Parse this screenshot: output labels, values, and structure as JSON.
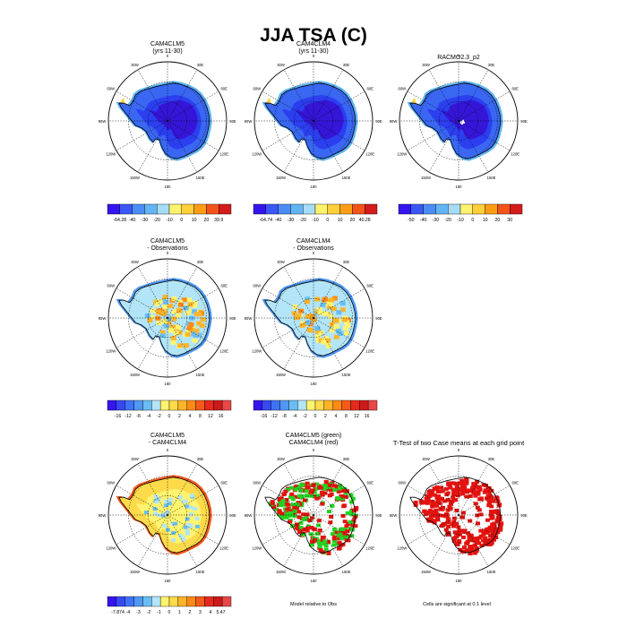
{
  "title": "JJA TSA (C)",
  "colors": {
    "land_base": "#2b3ff0",
    "land_deep": "#3516d8",
    "land_coast": "#5fb4f3",
    "ice_shelf": "#b3e6ff",
    "sig_red": "#e3130f",
    "sig_green": "#22d321"
  },
  "panels": [
    {
      "id": "cam4clm5",
      "title_lines": [
        "CAM4CLM5",
        "(yrs 11-30)"
      ],
      "fill": "absolute"
    },
    {
      "id": "cam4clm4",
      "title_lines": [
        "CAM4CLM4",
        "(yrs 11-30)"
      ],
      "fill": "absolute"
    },
    {
      "id": "racmo",
      "title_lines": [
        "RACMO2.3_p2"
      ],
      "fill": "absolute_obs"
    },
    {
      "id": "clm5-obs",
      "title_lines": [
        "CAM4CLM5",
        "- Observations"
      ],
      "fill": "bias"
    },
    {
      "id": "clm4-obs",
      "title_lines": [
        "CAM4CLM4",
        "- Observations"
      ],
      "fill": "bias"
    },
    {
      "id": "clm5-clm4",
      "title_lines": [
        "CAM4CLM5",
        "- CAM4CLM4"
      ],
      "fill": "diff"
    },
    {
      "id": "sig-compare",
      "title_lines": [
        "CAM4CLM5 (green)",
        "CAM4CLM4 (red)"
      ],
      "fill": "sig2"
    },
    {
      "id": "ttest",
      "title_lines": [
        "T-Test of two Case means at each grid point"
      ],
      "fill": "sig1"
    }
  ],
  "map_labels": {
    "lon": [
      "0",
      "30E",
      "60E",
      "90E",
      "120E",
      "150E",
      "180",
      "150W",
      "120W",
      "90W",
      "60W",
      "30W"
    ]
  },
  "colorbars": [
    {
      "id": "cb-clm5",
      "colors": [
        "#3515ee",
        "#3a58f5",
        "#4b8df5",
        "#62b5f4",
        "#a6dcf8",
        "#fff36d",
        "#ffd03a",
        "#ff9e16",
        "#f3541a",
        "#d41c1c"
      ],
      "labels": [
        "-64.28",
        "-40",
        "-30",
        "-20",
        "-10",
        "0",
        "10",
        "20",
        "39.9"
      ]
    },
    {
      "id": "cb-clm4",
      "colors": [
        "#3515ee",
        "#3a58f5",
        "#4b8df5",
        "#62b5f4",
        "#a6dcf8",
        "#fff36d",
        "#ffd03a",
        "#ff9e16",
        "#f3541a",
        "#d41c1c"
      ],
      "labels": [
        "-64.74",
        "-40",
        "-30",
        "-20",
        "-10",
        "0",
        "10",
        "20",
        "40.28"
      ]
    },
    {
      "id": "cb-racmo",
      "colors": [
        "#3515ee",
        "#3a58f5",
        "#4b8df5",
        "#62b5f4",
        "#a6dcf8",
        "#fff36d",
        "#ffd03a",
        "#ff9e16",
        "#f3541a",
        "#d41c1c"
      ],
      "labels": [
        "-50",
        "-40",
        "-30",
        "-20",
        "-10",
        "0",
        "10",
        "20",
        "30"
      ]
    },
    {
      "id": "cb-bias5",
      "colors": [
        "#3515ee",
        "#3849f3",
        "#3f73f5",
        "#4f98f5",
        "#69bdf4",
        "#b3e5f8",
        "#fff46f",
        "#ffdb4b",
        "#ffb52a",
        "#ff8a15",
        "#f45a1b",
        "#e52a1c",
        "#cc1a1a",
        "#e84848"
      ],
      "labels": [
        "-16",
        "-12",
        "-8",
        "-4",
        "-2",
        "0",
        "2",
        "4",
        "8",
        "12",
        "16"
      ]
    },
    {
      "id": "cb-bias4",
      "colors": [
        "#3515ee",
        "#3849f3",
        "#3f73f5",
        "#4f98f5",
        "#69bdf4",
        "#b3e5f8",
        "#fff46f",
        "#ffdb4b",
        "#ffb52a",
        "#ff8a15",
        "#f45a1b",
        "#e52a1c",
        "#cc1a1a",
        "#e84848"
      ],
      "labels": [
        "-16",
        "-12",
        "-8",
        "-4",
        "-2",
        "0",
        "2",
        "4",
        "8",
        "12",
        "16"
      ]
    },
    {
      "id": "cb-diff",
      "colors": [
        "#3515ee",
        "#3849f3",
        "#3f73f5",
        "#4f98f5",
        "#69bdf4",
        "#b3e5f8",
        "#fff46f",
        "#ffdb4b",
        "#ffb52a",
        "#ff8a15",
        "#f45a1b",
        "#e52a1c",
        "#cc1a1a",
        "#e84848"
      ],
      "labels": [
        "-7.874",
        "-4",
        "-3",
        "-2",
        "-1",
        "0",
        "1",
        "2",
        "3",
        "4",
        "5.47"
      ]
    }
  ],
  "footnotes": {
    "model_vs_obs": "Model relative to Obs",
    "significance": "Cells are significant at 0.1 level"
  },
  "chart_data": {
    "type": "heatmap",
    "title": "JJA TSA (C)",
    "projection": "south polar stereographic",
    "variable": "TSA",
    "season": "JJA",
    "units": "C",
    "grid": true,
    "longitude_labels": [
      "0",
      "30E",
      "60E",
      "90E",
      "120E",
      "150E",
      "180",
      "150W",
      "120W",
      "90W",
      "60W",
      "30W"
    ],
    "panels": [
      {
        "title": "CAM4CLM5 (yrs 11-30)",
        "min": -64.28,
        "max": 39.9,
        "levels": [
          -40,
          -30,
          -20,
          -10,
          0,
          10,
          20
        ]
      },
      {
        "title": "CAM4CLM4 (yrs 11-30)",
        "min": -64.74,
        "max": 40.28,
        "levels": [
          -40,
          -30,
          -20,
          -10,
          0,
          10,
          20
        ]
      },
      {
        "title": "RACMO2.3_p2",
        "levels": [
          -50,
          -40,
          -30,
          -20,
          -10,
          0,
          10,
          20,
          30
        ]
      },
      {
        "title": "CAM4CLM5 - Observations",
        "levels": [
          -16,
          -12,
          -8,
          -4,
          -2,
          0,
          2,
          4,
          8,
          12,
          16
        ]
      },
      {
        "title": "CAM4CLM4 - Observations",
        "levels": [
          -16,
          -12,
          -8,
          -4,
          -2,
          0,
          2,
          4,
          8,
          12,
          16
        ]
      },
      {
        "title": "CAM4CLM5 - CAM4CLM4",
        "min": -7.874,
        "max": 5.47,
        "levels": [
          -4,
          -3,
          -2,
          -1,
          0,
          1,
          2,
          3,
          4
        ]
      },
      {
        "title": "CAM4CLM5 (green) CAM4CLM4 (red)",
        "note": "Model relative to Obs"
      },
      {
        "title": "T-Test of two Case means at each grid point",
        "note": "Cells are significant at 0.1 level"
      }
    ]
  }
}
